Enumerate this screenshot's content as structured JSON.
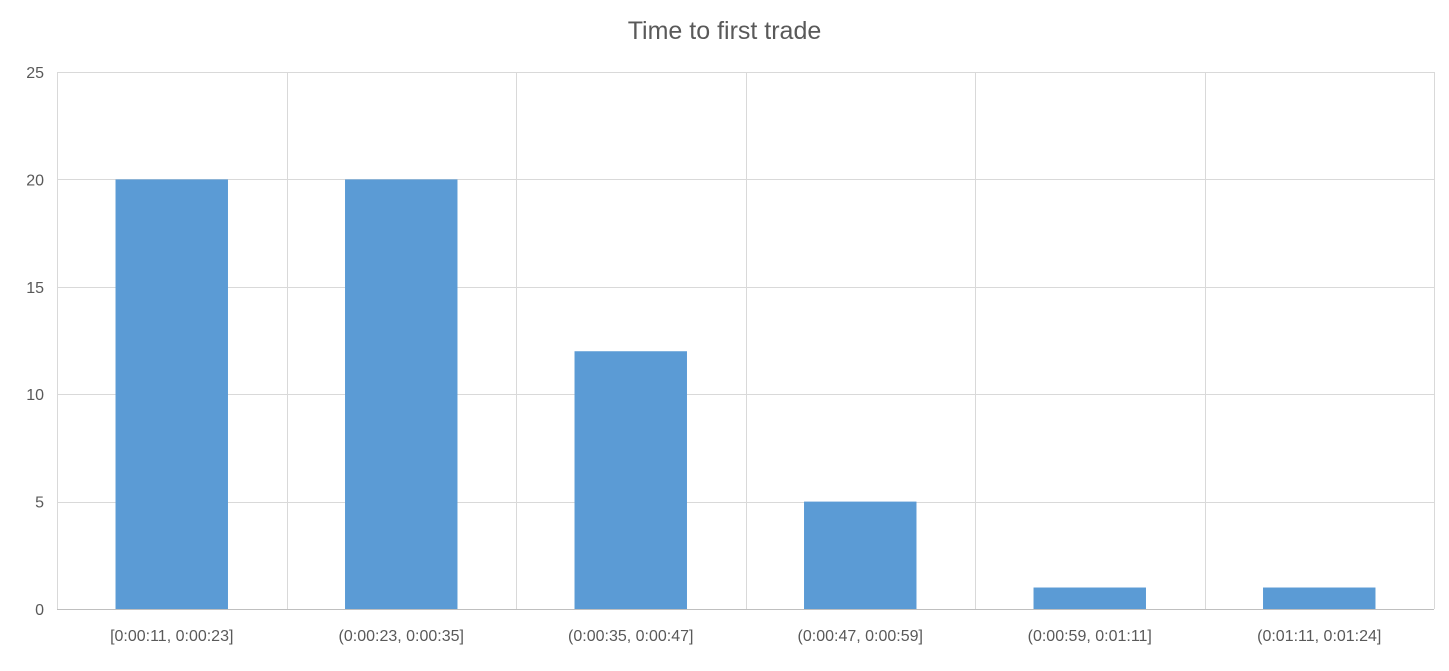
{
  "chart_data": {
    "type": "bar",
    "title": "Time to first trade",
    "xlabel": "",
    "ylabel": "",
    "categories": [
      "[0:00:11, 0:00:23]",
      "(0:00:23, 0:00:35]",
      "(0:00:35, 0:00:47]",
      "(0:00:47, 0:00:59]",
      "(0:00:59, 0:01:11]",
      "(0:01:11, 0:01:24]"
    ],
    "values": [
      20,
      20,
      12,
      5,
      1,
      1
    ],
    "ylim": [
      0,
      25
    ],
    "yticks": [
      0,
      5,
      10,
      15,
      20,
      25
    ],
    "grid": true,
    "legend": "none",
    "bar_color": "#5B9BD5",
    "grid_color": "#D9D9D9",
    "text_color": "#595959"
  }
}
